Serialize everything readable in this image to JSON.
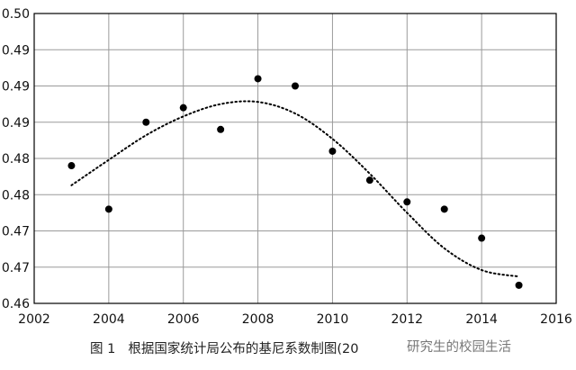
{
  "chart_data": {
    "type": "scatter",
    "title": "",
    "xlabel": "",
    "ylabel": "",
    "xlim": [
      2002,
      2016
    ],
    "ylim": [
      0.46,
      0.5
    ],
    "x_ticks": [
      2002,
      2004,
      2006,
      2008,
      2010,
      2012,
      2014,
      2016
    ],
    "y_ticks": [
      0.46,
      0.465,
      0.47,
      0.475,
      0.48,
      0.485,
      0.49,
      0.495,
      0.5
    ],
    "y_tick_labels": [
      "0.46",
      "0.47",
      "0.47",
      "0.48",
      "0.48",
      "0.49",
      "0.49",
      "0.49",
      "0.50"
    ],
    "grid": true,
    "legend": "none",
    "series": [
      {
        "style": "points",
        "x": [
          2003,
          2004,
          2005,
          2006,
          2007,
          2008,
          2009,
          2010,
          2011,
          2012,
          2013,
          2014,
          2015
        ],
        "y": [
          0.479,
          0.473,
          0.485,
          0.487,
          0.484,
          0.491,
          0.49,
          0.481,
          0.477,
          0.474,
          0.473,
          0.469,
          0.4625
        ]
      },
      {
        "style": "dotted-trend",
        "x": [
          2003,
          2004,
          2005,
          2006,
          2007,
          2008,
          2009,
          2010,
          2011,
          2012,
          2013,
          2014,
          2015
        ],
        "y": [
          0.4763,
          0.4798,
          0.4832,
          0.4858,
          0.4875,
          0.4878,
          0.4862,
          0.4827,
          0.4779,
          0.4725,
          0.4676,
          0.4646,
          0.4637
        ]
      }
    ],
    "colors": {
      "points": "#000000",
      "trend": "#000000",
      "grid": "#9a9a9a",
      "axis": "#000000"
    }
  },
  "caption": {
    "label": "图 1",
    "text": "根据国家统计局公布的基尼系数制图(20"
  },
  "watermark": "研究生的校园生活"
}
